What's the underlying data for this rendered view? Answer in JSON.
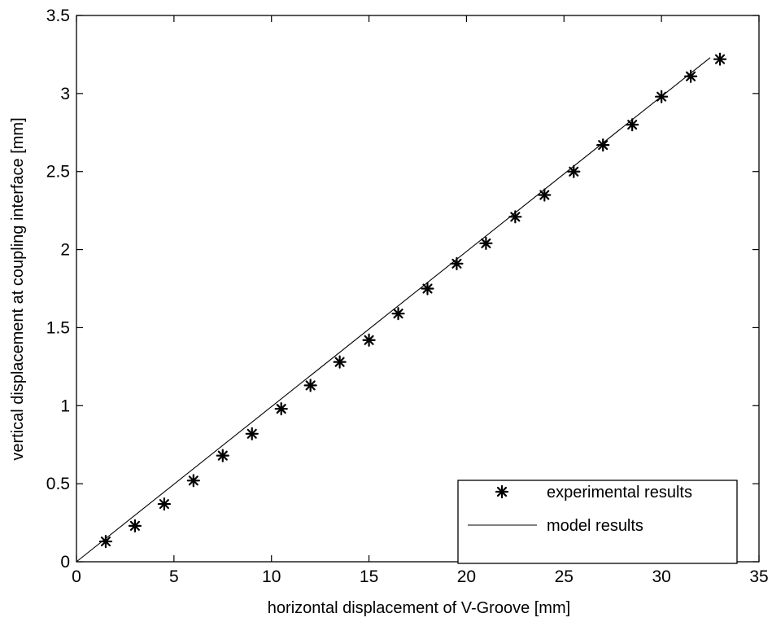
{
  "chart_data": {
    "type": "scatter",
    "title": "",
    "xlabel": "horizontal displacement of V-Groove [mm]",
    "ylabel": "vertical displacement at coupling interface [mm]",
    "xlim": [
      0,
      35
    ],
    "ylim": [
      0,
      3.5
    ],
    "xticks": [
      "0",
      "5",
      "10",
      "15",
      "20",
      "25",
      "30",
      "35"
    ],
    "yticks": [
      "0",
      "0.5",
      "1",
      "1.5",
      "2",
      "2.5",
      "3",
      "3.5"
    ],
    "grid": false,
    "legend_position": "bottom-right",
    "series": [
      {
        "name": "experimental results",
        "marker": "asterisk",
        "x": [
          1.5,
          3,
          4.5,
          6,
          7.5,
          9,
          10.5,
          12,
          13.5,
          15,
          16.5,
          18,
          19.5,
          21,
          22.5,
          24,
          25.5,
          27,
          28.5,
          30,
          31.5,
          33
        ],
        "y": [
          0.13,
          0.23,
          0.37,
          0.52,
          0.68,
          0.82,
          0.98,
          1.13,
          1.28,
          1.42,
          1.59,
          1.75,
          1.91,
          2.04,
          2.21,
          2.35,
          2.5,
          2.67,
          2.8,
          2.98,
          3.11,
          3.22
        ]
      },
      {
        "name": "model results",
        "marker": "line",
        "x": [
          0,
          32.5
        ],
        "y": [
          0,
          3.23
        ]
      }
    ],
    "colors": {
      "line": "#000000",
      "marker": "#000000",
      "frame": "#000000"
    }
  }
}
